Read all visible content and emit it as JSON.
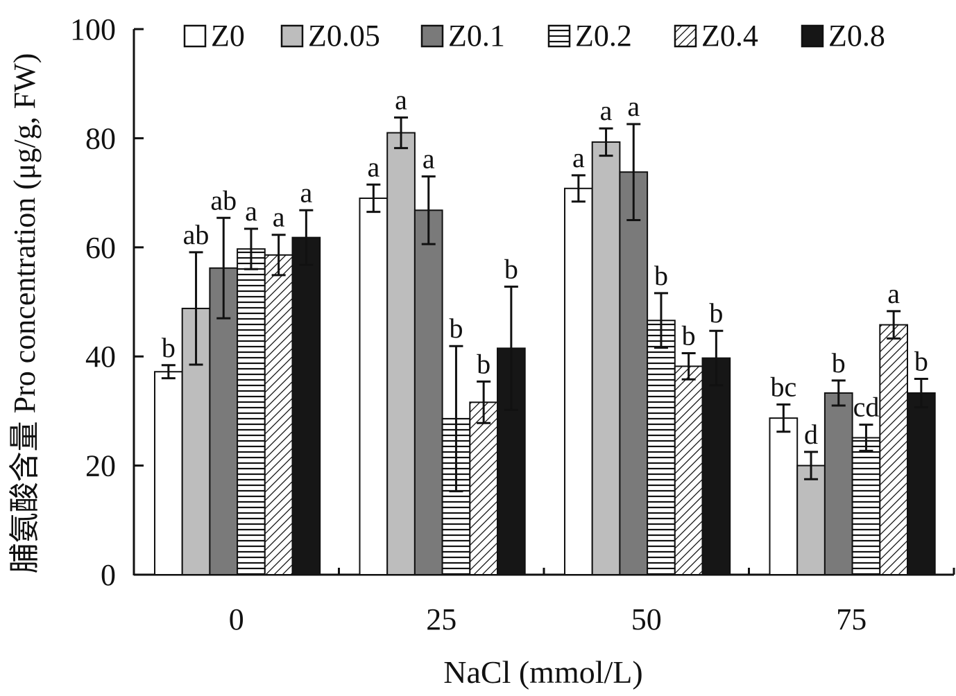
{
  "chart_data": {
    "type": "bar",
    "title": "",
    "xlabel": "NaCl (mmol/L)",
    "ylabel": "脯氨酸含量 Pro concentration (μg/g, FW)",
    "ylim": [
      0,
      100
    ],
    "yticks": [
      "0",
      "20",
      "40",
      "60",
      "80",
      "100"
    ],
    "ytick_values": [
      0,
      20,
      40,
      60,
      80,
      100
    ],
    "categories": [
      "0",
      "25",
      "50",
      "75"
    ],
    "legend_position": "top",
    "series": [
      {
        "name": "Z0",
        "fill": "white",
        "pattern": "solid",
        "values": [
          37.2,
          69.0,
          70.8,
          28.7
        ],
        "errors": [
          1.2,
          2.5,
          2.4,
          2.5
        ],
        "labels": [
          "b",
          "a",
          "a",
          "bc"
        ]
      },
      {
        "name": "Z0.05",
        "fill": "lightgray",
        "pattern": "solid",
        "values": [
          48.8,
          81.0,
          79.3,
          20.0
        ],
        "errors": [
          10.3,
          2.8,
          2.5,
          2.5
        ],
        "labels": [
          "ab",
          "a",
          "a",
          "d"
        ]
      },
      {
        "name": "Z0.1",
        "fill": "darkgray",
        "pattern": "solid",
        "values": [
          56.2,
          66.8,
          73.8,
          33.3
        ],
        "errors": [
          9.2,
          6.2,
          8.8,
          2.3
        ],
        "labels": [
          "ab",
          "a",
          "a",
          "b"
        ]
      },
      {
        "name": "Z0.2",
        "fill": "white",
        "pattern": "horizontal",
        "values": [
          59.7,
          28.6,
          46.6,
          25.1
        ],
        "errors": [
          3.7,
          13.3,
          5.0,
          2.4
        ],
        "labels": [
          "a",
          "b",
          "b",
          "cd"
        ]
      },
      {
        "name": "Z0.4",
        "fill": "white",
        "pattern": "diagonal",
        "values": [
          58.6,
          31.6,
          38.2,
          45.8
        ],
        "errors": [
          3.7,
          3.8,
          2.4,
          2.5
        ],
        "labels": [
          "a",
          "b",
          "b",
          "a"
        ]
      },
      {
        "name": "Z0.8",
        "fill": "black",
        "pattern": "solid",
        "values": [
          61.8,
          41.5,
          39.7,
          33.3
        ],
        "errors": [
          5.0,
          11.3,
          5.0,
          2.6
        ],
        "labels": [
          "a",
          "b",
          "b",
          "b"
        ]
      }
    ]
  }
}
